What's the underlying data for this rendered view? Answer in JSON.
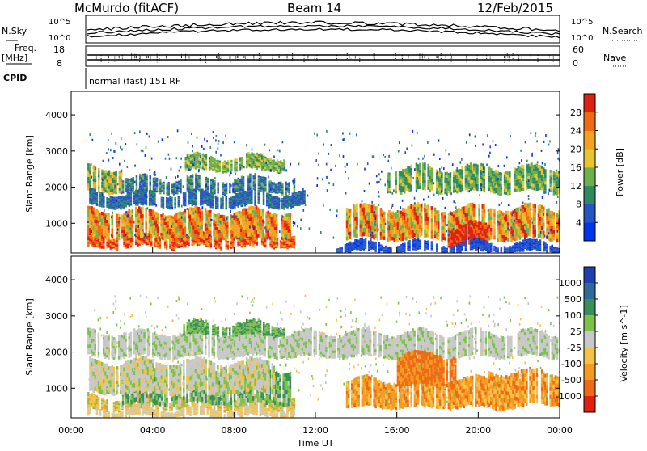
{
  "header": {
    "station": "McMurdo (fitACF)",
    "beam": "Beam 14",
    "date": "12/Feb/2015"
  },
  "strip_panels": {
    "noise_left_label": "N.Sky",
    "noise_right_label": "N.Search",
    "noise_left_ticks": [
      "10^5",
      "10^0"
    ],
    "noise_right_ticks": [
      "10^5",
      "10^0"
    ],
    "freq_label_line1": "Freq.",
    "freq_label_line2": "[MHz]",
    "freq_ticks": [
      "18",
      "8"
    ],
    "nave_label": "Nave",
    "nave_ticks": [
      "60",
      "0"
    ],
    "cpid_label": "CPID",
    "cpid_text": "normal (fast) 151 RF"
  },
  "chart_data": [
    {
      "type": "heatmap",
      "name": "power",
      "xlabel": "Time UT",
      "ylabel": "Slant Range [km]",
      "x_ticks": [
        "00:00",
        "04:00",
        "08:00",
        "12:00",
        "16:00",
        "20:00",
        "00:00"
      ],
      "xlim_hours": [
        0,
        24
      ],
      "y_ticks": [
        1000,
        2000,
        3000,
        4000
      ],
      "ylim_km": [
        180,
        4650
      ],
      "colorbar": {
        "label": "Power [dB]",
        "ticks": [
          "4",
          "8",
          "12",
          "16",
          "20",
          "24",
          "28"
        ],
        "colors": [
          "#0033ee",
          "#2454c6",
          "#2f8a60",
          "#6fb04b",
          "#e6c531",
          "#f5a021",
          "#f06a10",
          "#e02010"
        ]
      }
    },
    {
      "type": "heatmap",
      "name": "velocity",
      "xlabel": "Time UT",
      "ylabel": "Slant Range [km]",
      "x_ticks": [
        "00:00",
        "04:00",
        "08:00",
        "12:00",
        "16:00",
        "20:00",
        "00:00"
      ],
      "xlim_hours": [
        0,
        24
      ],
      "y_ticks": [
        1000,
        2000,
        3000,
        4000
      ],
      "ylim_km": [
        180,
        4650
      ],
      "colorbar": {
        "label": "Velocity [m s^-1]",
        "ticks": [
          "1000",
          "500",
          "100",
          "25",
          "-25",
          "-100",
          "-500",
          "-1000"
        ],
        "colors": [
          "#1f3fb0",
          "#2d6a9a",
          "#3a8e5c",
          "#7cc24a",
          "#c8c8c8",
          "#f5c247",
          "#f59a20",
          "#ee6a14",
          "#e02010"
        ]
      }
    }
  ]
}
